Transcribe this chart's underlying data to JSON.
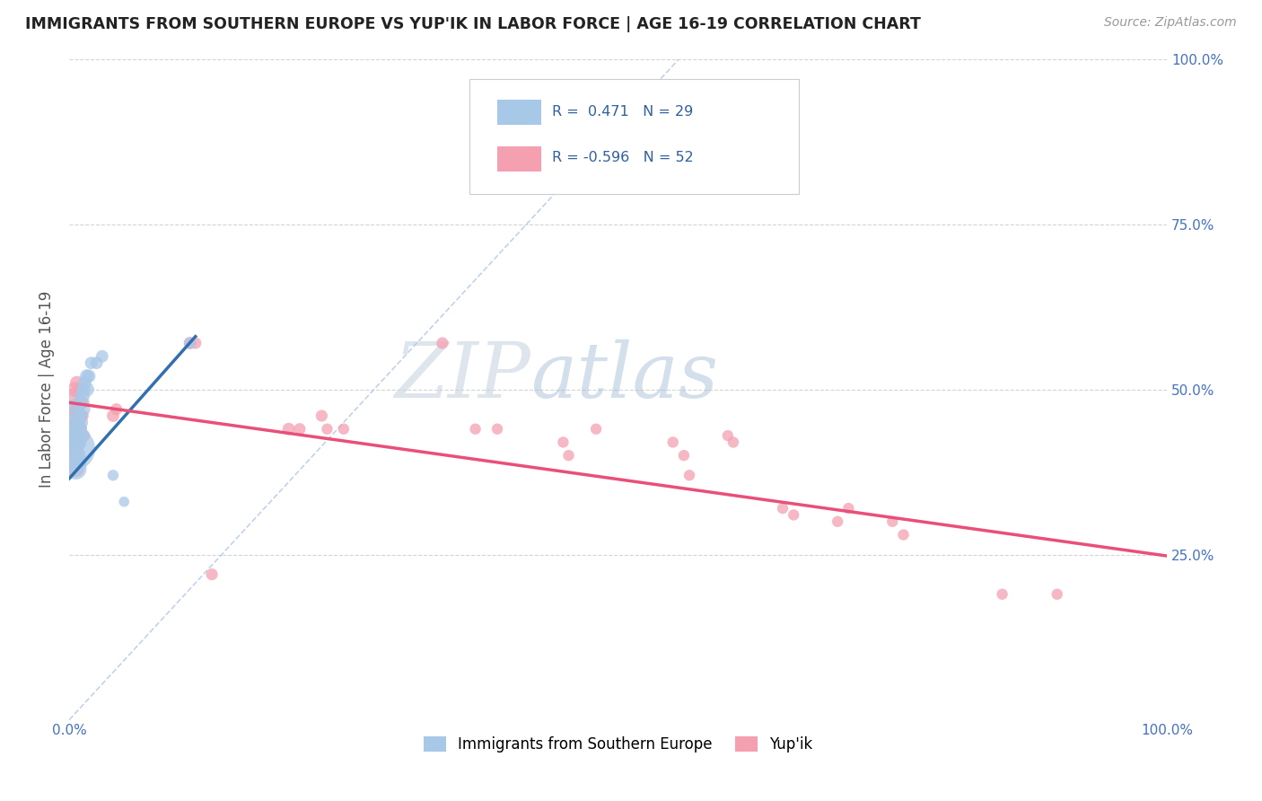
{
  "title": "IMMIGRANTS FROM SOUTHERN EUROPE VS YUP'IK IN LABOR FORCE | AGE 16-19 CORRELATION CHART",
  "source": "Source: ZipAtlas.com",
  "ylabel": "In Labor Force | Age 16-19",
  "xlim": [
    0,
    1.0
  ],
  "ylim": [
    0,
    1.0
  ],
  "legend1_label": "Immigrants from Southern Europe",
  "legend2_label": "Yup'ik",
  "r1": 0.471,
  "n1": 29,
  "r2": -0.596,
  "n2": 52,
  "blue_color": "#a8c8e8",
  "pink_color": "#f4a0b0",
  "blue_line_color": "#3070b0",
  "pink_line_color": "#e8507a",
  "dashed_line_color": "#b0c8e8",
  "watermark_zip": "ZIP",
  "watermark_atlas": "atlas",
  "watermark_zip_color": "#c8d8e8",
  "watermark_atlas_color": "#a0b8d8",
  "blue_scatter": [
    [
      0.004,
      0.41
    ],
    [
      0.005,
      0.43
    ],
    [
      0.005,
      0.44
    ],
    [
      0.005,
      0.47
    ],
    [
      0.006,
      0.38
    ],
    [
      0.006,
      0.4
    ],
    [
      0.007,
      0.42
    ],
    [
      0.007,
      0.43
    ],
    [
      0.007,
      0.45
    ],
    [
      0.008,
      0.39
    ],
    [
      0.008,
      0.42
    ],
    [
      0.009,
      0.44
    ],
    [
      0.009,
      0.46
    ],
    [
      0.01,
      0.43
    ],
    [
      0.01,
      0.45
    ],
    [
      0.01,
      0.48
    ],
    [
      0.012,
      0.47
    ],
    [
      0.012,
      0.49
    ],
    [
      0.013,
      0.5
    ],
    [
      0.014,
      0.51
    ],
    [
      0.016,
      0.5
    ],
    [
      0.016,
      0.52
    ],
    [
      0.018,
      0.52
    ],
    [
      0.02,
      0.54
    ],
    [
      0.025,
      0.54
    ],
    [
      0.03,
      0.55
    ],
    [
      0.04,
      0.37
    ],
    [
      0.05,
      0.33
    ],
    [
      0.11,
      0.57
    ]
  ],
  "blue_sizes": [
    1200,
    400,
    300,
    250,
    300,
    250,
    200,
    180,
    160,
    200,
    180,
    160,
    140,
    200,
    160,
    140,
    160,
    140,
    130,
    120,
    140,
    120,
    110,
    100,
    100,
    100,
    80,
    70,
    90
  ],
  "pink_scatter": [
    [
      0.003,
      0.415
    ],
    [
      0.004,
      0.44
    ],
    [
      0.004,
      0.46
    ],
    [
      0.004,
      0.49
    ],
    [
      0.005,
      0.41
    ],
    [
      0.005,
      0.43
    ],
    [
      0.005,
      0.47
    ],
    [
      0.005,
      0.5
    ],
    [
      0.006,
      0.38
    ],
    [
      0.006,
      0.4
    ],
    [
      0.006,
      0.44
    ],
    [
      0.007,
      0.47
    ],
    [
      0.007,
      0.51
    ],
    [
      0.008,
      0.42
    ],
    [
      0.008,
      0.45
    ],
    [
      0.009,
      0.43
    ],
    [
      0.009,
      0.46
    ],
    [
      0.01,
      0.44
    ],
    [
      0.01,
      0.5
    ],
    [
      0.011,
      0.46
    ],
    [
      0.012,
      0.46
    ],
    [
      0.013,
      0.48
    ],
    [
      0.014,
      0.43
    ],
    [
      0.04,
      0.46
    ],
    [
      0.043,
      0.47
    ],
    [
      0.11,
      0.57
    ],
    [
      0.115,
      0.57
    ],
    [
      0.13,
      0.22
    ],
    [
      0.2,
      0.44
    ],
    [
      0.21,
      0.44
    ],
    [
      0.23,
      0.46
    ],
    [
      0.235,
      0.44
    ],
    [
      0.25,
      0.44
    ],
    [
      0.34,
      0.57
    ],
    [
      0.37,
      0.44
    ],
    [
      0.39,
      0.44
    ],
    [
      0.45,
      0.42
    ],
    [
      0.455,
      0.4
    ],
    [
      0.48,
      0.44
    ],
    [
      0.55,
      0.42
    ],
    [
      0.56,
      0.4
    ],
    [
      0.565,
      0.37
    ],
    [
      0.6,
      0.43
    ],
    [
      0.605,
      0.42
    ],
    [
      0.65,
      0.32
    ],
    [
      0.66,
      0.31
    ],
    [
      0.7,
      0.3
    ],
    [
      0.71,
      0.32
    ],
    [
      0.75,
      0.3
    ],
    [
      0.76,
      0.28
    ],
    [
      0.85,
      0.19
    ],
    [
      0.9,
      0.19
    ]
  ],
  "pink_sizes": [
    300,
    200,
    180,
    160,
    200,
    180,
    160,
    140,
    180,
    160,
    140,
    120,
    120,
    160,
    140,
    120,
    110,
    120,
    100,
    100,
    100,
    90,
    80,
    100,
    90,
    100,
    90,
    90,
    100,
    90,
    90,
    80,
    80,
    90,
    80,
    80,
    80,
    80,
    80,
    80,
    80,
    80,
    80,
    80,
    80,
    80,
    80,
    80,
    80,
    80,
    80,
    80
  ]
}
